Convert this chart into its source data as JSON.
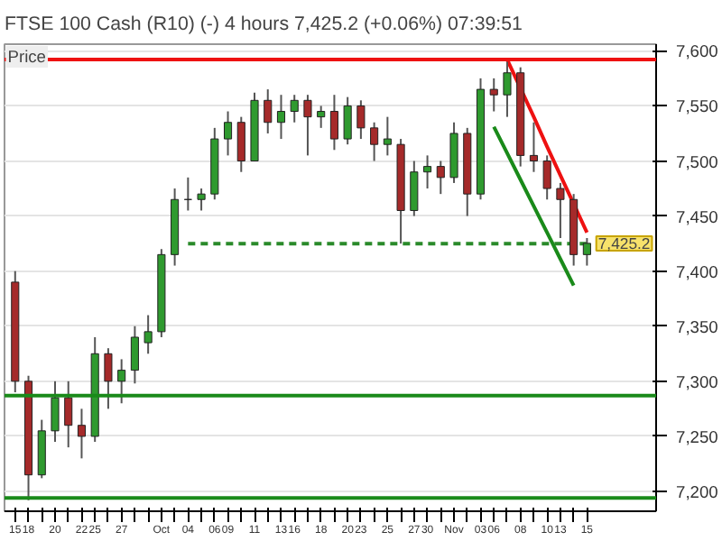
{
  "chart_data": {
    "type": "candlestick",
    "title": "FTSE 100 Cash (R10) (-)   4 hours   7,425.2 (+0.06%)   07:39:51",
    "categories": [
      "15",
      "18",
      null,
      "20",
      null,
      "22",
      "25",
      null,
      "27",
      null,
      null,
      "Oct",
      null,
      "04",
      null,
      "06",
      "09",
      null,
      "11",
      null,
      "13",
      "16",
      null,
      "18",
      null,
      "20",
      "23",
      null,
      "25",
      null,
      "27",
      "30",
      null,
      "Nov",
      null,
      "03",
      "06",
      null,
      "08",
      null,
      "10",
      "13",
      null,
      "15"
    ],
    "ohlc": [
      [
        7390,
        7400,
        7290,
        7300
      ],
      [
        7300,
        7305,
        7192,
        7215
      ],
      [
        7215,
        7265,
        7212,
        7255
      ],
      [
        7255,
        7300,
        7245,
        7285
      ],
      [
        7285,
        7300,
        7240,
        7260
      ],
      [
        7260,
        7275,
        7230,
        7250
      ],
      [
        7250,
        7340,
        7245,
        7325
      ],
      [
        7325,
        7330,
        7275,
        7300
      ],
      [
        7300,
        7320,
        7280,
        7310
      ],
      [
        7310,
        7350,
        7298,
        7340
      ],
      [
        7335,
        7360,
        7325,
        7345
      ],
      [
        7345,
        7420,
        7340,
        7415
      ],
      [
        7415,
        7475,
        7405,
        7465
      ],
      [
        7465,
        7485,
        7455,
        7465
      ],
      [
        7465,
        7475,
        7455,
        7470
      ],
      [
        7470,
        7530,
        7465,
        7520
      ],
      [
        7520,
        7545,
        7505,
        7535
      ],
      [
        7535,
        7540,
        7490,
        7500
      ],
      [
        7500,
        7562,
        7500,
        7555
      ],
      [
        7555,
        7565,
        7525,
        7535
      ],
      [
        7535,
        7560,
        7520,
        7545
      ],
      [
        7545,
        7560,
        7535,
        7555
      ],
      [
        7555,
        7560,
        7505,
        7540
      ],
      [
        7540,
        7550,
        7530,
        7545
      ],
      [
        7545,
        7560,
        7510,
        7520
      ],
      [
        7520,
        7558,
        7515,
        7550
      ],
      [
        7550,
        7555,
        7520,
        7530
      ],
      [
        7530,
        7535,
        7500,
        7515
      ],
      [
        7515,
        7540,
        7505,
        7520
      ],
      [
        7515,
        7520,
        7425,
        7455
      ],
      [
        7455,
        7500,
        7450,
        7490
      ],
      [
        7490,
        7505,
        7475,
        7495
      ],
      [
        7495,
        7500,
        7470,
        7485
      ],
      [
        7485,
        7535,
        7480,
        7525
      ],
      [
        7525,
        7530,
        7450,
        7470
      ],
      [
        7470,
        7575,
        7465,
        7565
      ],
      [
        7565,
        7575,
        7545,
        7560
      ],
      [
        7560,
        7590,
        7540,
        7580
      ],
      [
        7580,
        7585,
        7495,
        7505
      ],
      [
        7505,
        7535,
        7490,
        7500
      ],
      [
        7500,
        7505,
        7465,
        7475
      ],
      [
        7475,
        7480,
        7430,
        7465
      ],
      [
        7465,
        7470,
        7405,
        7415
      ],
      [
        7415,
        7430,
        7405,
        7425.2
      ]
    ],
    "series": [
      {
        "type": "line",
        "color": "#2a8a2a",
        "line_style": "dashed",
        "values": [
          null,
          null,
          null,
          null,
          null,
          null,
          null,
          null,
          null,
          null,
          null,
          null,
          null,
          7425,
          7425,
          7425,
          7425,
          7425,
          7425,
          7425,
          7425,
          7425,
          7425,
          7425,
          7425,
          7425,
          7425,
          7425,
          7425,
          7425,
          7425,
          7425,
          7425,
          7425,
          7425,
          7425,
          7425,
          7425,
          7425,
          7425,
          7425,
          7425,
          7425,
          7425
        ]
      },
      {
        "type": "line",
        "color": "#ee1111",
        "line_style": "solid",
        "values": [
          null,
          null,
          null,
          null,
          null,
          null,
          null,
          null,
          null,
          null,
          null,
          null,
          null,
          null,
          null,
          null,
          null,
          null,
          null,
          null,
          null,
          null,
          null,
          null,
          null,
          null,
          null,
          null,
          null,
          null,
          null,
          null,
          null,
          null,
          null,
          null,
          null,
          7592,
          7566,
          7540,
          7513,
          7487,
          7461,
          7435
        ]
      },
      {
        "type": "line",
        "color": "#1a8a1a",
        "line_style": "solid",
        "values": [
          null,
          null,
          null,
          null,
          null,
          null,
          null,
          null,
          null,
          null,
          null,
          null,
          null,
          null,
          null,
          null,
          null,
          null,
          null,
          null,
          null,
          null,
          null,
          null,
          null,
          null,
          null,
          null,
          null,
          null,
          null,
          null,
          null,
          null,
          null,
          null,
          7531,
          7507,
          7483,
          7459,
          7435,
          7411,
          7387,
          null
        ]
      }
    ],
    "ref_lines": [
      {
        "axis": "y",
        "value": 7592,
        "color": "#ee1111"
      },
      {
        "axis": "y",
        "value": 7287,
        "color": "#1a8a1a"
      },
      {
        "axis": "y",
        "value": 7194,
        "color": "#1a8a1a"
      }
    ],
    "annotations": [
      "Price",
      "7,425.2"
    ],
    "ylim": [
      7182,
      7606
    ],
    "yticks": [
      {
        "value": 7200,
        "label": "7,200"
      },
      {
        "value": 7250,
        "label": "7,250"
      },
      {
        "value": 7300,
        "label": "7,300"
      },
      {
        "value": 7350,
        "label": "7,350"
      },
      {
        "value": 7400,
        "label": "7,400"
      },
      {
        "value": 7450,
        "label": "7,450"
      },
      {
        "value": 7500,
        "label": "7,500"
      },
      {
        "value": 7550,
        "label": "7,550"
      },
      {
        "value": 7600,
        "label": "7,600"
      }
    ],
    "grid": "y"
  }
}
